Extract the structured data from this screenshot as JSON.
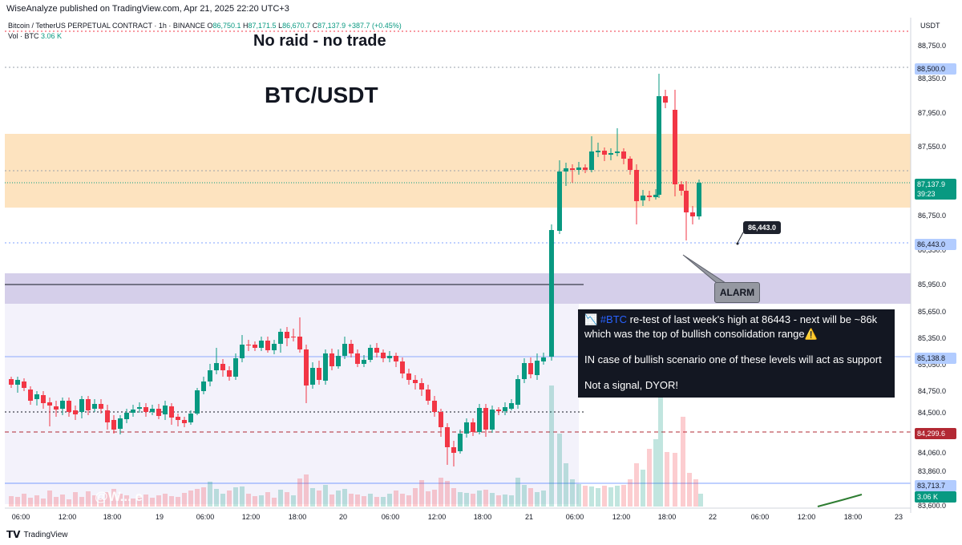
{
  "header": {
    "published": "WiseAnalyze published on TradingView.com, Apr 21, 2025 22:20 UTC+3"
  },
  "legend": {
    "symbol": "Bitcoin / TetherUS PERPETUAL CONTRACT · 1h · BINANCE",
    "o_label": "O",
    "o": "86,750.1",
    "h_label": "H",
    "h": "87,171.5",
    "l_label": "L",
    "l": "86,670.7",
    "c_label": "C",
    "c": "87,137.9",
    "change": "+387.7 (+0.45%)",
    "vol_label": "Vol · BTC",
    "vol": "3.06 K"
  },
  "annotations": {
    "title1": "No raid - no trade",
    "title2": "BTC/USDT",
    "level_label": "86,443.0",
    "alarm": "ALARM",
    "note_tag": "#BTC",
    "note_line1": " re-test of last week's high at 86443 - next will be ~86k which was the top of bullish consolidation range⚠️",
    "note_line2": "IN case of bullish scenario one of these levels will act as support",
    "note_line3": "Not a signal, DYOR!",
    "watermark": "@W...            e"
  },
  "y_axis": {
    "currency": "USDT",
    "labels": [
      "88,750.0",
      "88,350.0",
      "87,950.0",
      "87,550.0",
      "86,750.0",
      "86,350.0",
      "85,950.0",
      "85,650.0",
      "85,350.0",
      "85,050.0",
      "84,750.0",
      "84,500.0",
      "84,060.0",
      "83,860.0",
      "83,600.0"
    ],
    "tags": [
      {
        "text": "88,500.0",
        "bg": "#b2ccff",
        "fg": "#131722"
      },
      {
        "text": "87,137.9",
        "bg": "#089981",
        "fg": "#ffffff"
      },
      {
        "text": "39:23",
        "bg": "#089981",
        "fg": "#ffffff"
      },
      {
        "text": "86,443.0",
        "bg": "#b2ccff",
        "fg": "#131722"
      },
      {
        "text": "85,138.8",
        "bg": "#b2ccff",
        "fg": "#131722"
      },
      {
        "text": "84,299.6",
        "bg": "#b22833",
        "fg": "#ffffff"
      },
      {
        "text": "83,713.7",
        "bg": "#b2ccff",
        "fg": "#131722"
      },
      {
        "text": "3.06 K",
        "bg": "#089981",
        "fg": "#ffffff"
      }
    ]
  },
  "x_axis": {
    "labels": [
      "06:00",
      "12:00",
      "18:00",
      "19",
      "06:00",
      "12:00",
      "18:00",
      "20",
      "06:00",
      "12:00",
      "18:00",
      "21",
      "06:00",
      "12:00",
      "18:00",
      "22",
      "06:00",
      "12:00",
      "18:00",
      "23"
    ]
  },
  "footer": {
    "brand": "TradingView"
  },
  "colors": {
    "up": "#089981",
    "down": "#f23645",
    "orange_zone": "#fde3bf",
    "purple_zone": "#d5cfea",
    "level_blue": "#2962ff"
  }
}
